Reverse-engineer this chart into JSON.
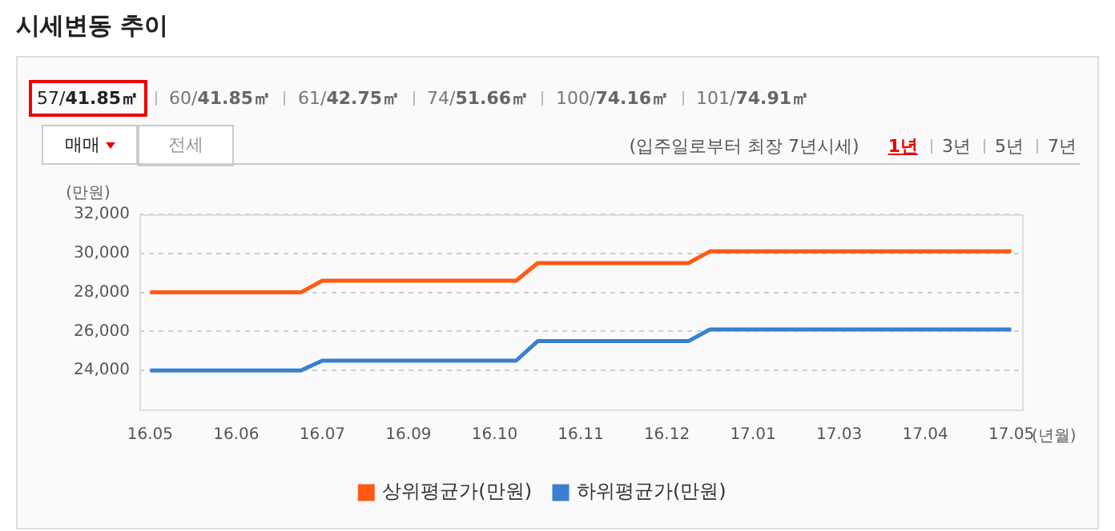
{
  "chart_data": {
    "type": "line",
    "title": "시세변동 추이",
    "ylabel": "(만원)",
    "xlabel": "(년월)",
    "annotations": [
      "57/41.85㎡",
      "60/41.85㎡",
      "61/42.75㎡",
      "74/51.66㎡",
      "100/74.16㎡",
      "101/74.91㎡",
      "매매",
      "전세",
      "(입주일로부터 최장 7년시세)",
      "1년",
      "3년",
      "5년",
      "7년"
    ],
    "categories": [
      "16.05",
      null,
      null,
      null,
      "16.06",
      null,
      null,
      null,
      "16.07",
      null,
      null,
      null,
      "16.09",
      null,
      null,
      null,
      "16.10",
      null,
      null,
      null,
      "16.11",
      null,
      null,
      null,
      "16.12",
      null,
      null,
      null,
      "17.01",
      null,
      null,
      null,
      "17.03",
      null,
      null,
      null,
      "17.04",
      null,
      null,
      null,
      "17.05"
    ],
    "series": [
      {
        "name": "상위평균가(만원)",
        "color": "#ff5a14",
        "values": [
          28000,
          28000,
          28000,
          28000,
          28000,
          28000,
          28000,
          28000,
          28600,
          28600,
          28600,
          28600,
          28600,
          28600,
          28600,
          28600,
          28600,
          28600,
          29500,
          29500,
          29500,
          29500,
          29500,
          29500,
          29500,
          29500,
          30100,
          30100,
          30100,
          30100,
          30100,
          30100,
          30100,
          30100,
          30100,
          30100,
          30100,
          30100,
          30100,
          30100,
          30100
        ]
      },
      {
        "name": "하위평균가(만원)",
        "color": "#3a7fd0",
        "values": [
          24000,
          24000,
          24000,
          24000,
          24000,
          24000,
          24000,
          24000,
          24500,
          24500,
          24500,
          24500,
          24500,
          24500,
          24500,
          24500,
          24500,
          24500,
          25500,
          25500,
          25500,
          25500,
          25500,
          25500,
          25500,
          25500,
          26100,
          26100,
          26100,
          26100,
          26100,
          26100,
          26100,
          26100,
          26100,
          26100,
          26100,
          26100,
          26100,
          26100,
          26100
        ]
      }
    ],
    "ylim": [
      22000,
      32000
    ],
    "yticks": [
      {
        "value": 24000,
        "label": "24,000"
      },
      {
        "value": 26000,
        "label": "26,000"
      },
      {
        "value": 28000,
        "label": "28,000"
      },
      {
        "value": 30000,
        "label": "30,000"
      },
      {
        "value": 32000,
        "label": "32,000"
      }
    ],
    "grid": "y",
    "legend": "bottom",
    "marker": "none",
    "line_style": "solid"
  }
}
